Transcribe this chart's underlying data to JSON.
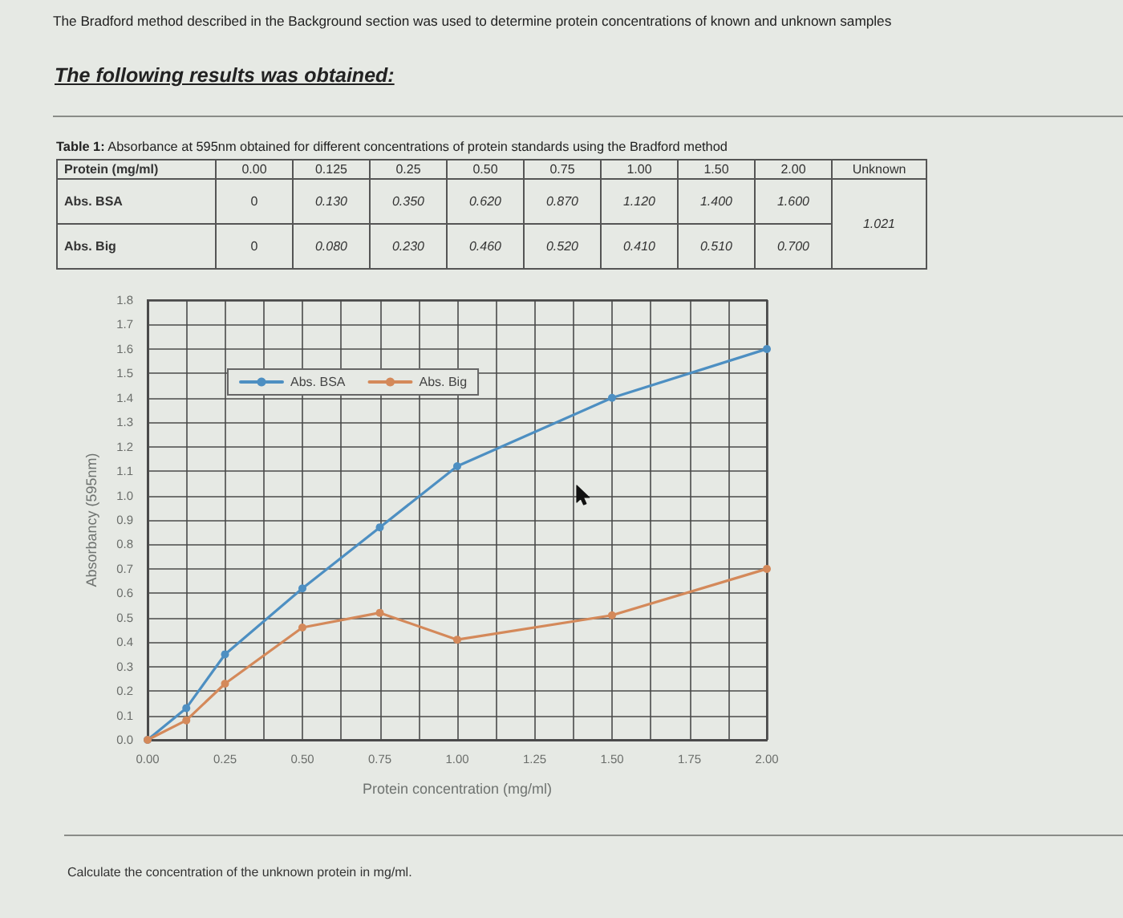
{
  "chart_data": [
    {
      "type": "other",
      "title": "The Bradford method described in the Background section was used to determine protein concentrations of known and unknown samples",
      "subtitle": "The following results was obtained:",
      "annotations": [
        "Table 1: Absorbance at 595nm obtained for different concentrations of protein standards using the Bradford method",
        "Protein (mg/ml)",
        "0.00",
        "0.125",
        "0.25",
        "0.50",
        "0.75",
        "1.00",
        "1.50",
        "2.00",
        "Unknown",
        "Abs. BSA",
        "0",
        "0.130",
        "0.350",
        "0.620",
        "0.870",
        "1.120",
        "1.400",
        "1.600",
        "1.021",
        "Abs. Big",
        "0",
        "0.080",
        "0.230",
        "0.460",
        "0.520",
        "0.410",
        "0.510",
        "0.700"
      ]
    },
    {
      "type": "line",
      "xlabel": "Protein concentration (mg/ml)",
      "ylabel": "Absorbancy (595nm)",
      "x": [
        0,
        0.125,
        0.25,
        0.5,
        0.75,
        1,
        1.5,
        2
      ],
      "series": [
        {
          "name": "Abs. BSA",
          "color": "#4d8fc2",
          "values": [
            0,
            0.13,
            0.35,
            0.62,
            0.87,
            1.12,
            1.4,
            1.6
          ]
        },
        {
          "name": "Abs. Big",
          "color": "#d4895a",
          "values": [
            0,
            0.08,
            0.23,
            0.46,
            0.52,
            0.41,
            0.51,
            0.7
          ]
        }
      ],
      "xlim": [
        0,
        2
      ],
      "xticks": [
        {
          "value": 0,
          "label": "0.00"
        },
        {
          "value": 0.125,
          "label": null
        },
        {
          "value": 0.25,
          "label": "0.25"
        },
        {
          "value": 0.375,
          "label": null
        },
        {
          "value": 0.5,
          "label": "0.50"
        },
        {
          "value": 0.625,
          "label": null
        },
        {
          "value": 0.75,
          "label": "0.75"
        },
        {
          "value": 0.875,
          "label": null
        },
        {
          "value": 1,
          "label": "1.00"
        },
        {
          "value": 1.125,
          "label": null
        },
        {
          "value": 1.25,
          "label": "1.25"
        },
        {
          "value": 1.375,
          "label": null
        },
        {
          "value": 1.5,
          "label": "1.50"
        },
        {
          "value": 1.625,
          "label": null
        },
        {
          "value": 1.75,
          "label": "1.75"
        },
        {
          "value": 1.875,
          "label": null
        },
        {
          "value": 2,
          "label": "2.00"
        }
      ],
      "ylim": [
        0,
        1.8
      ],
      "yticks": [
        {
          "value": 0,
          "label": "0.0"
        },
        0.1,
        0.2,
        0.3,
        0.4,
        0.5,
        0.6,
        0.7,
        0.8,
        0.9,
        {
          "value": 1,
          "label": "1.0"
        },
        1.1,
        1.2,
        1.3,
        1.4,
        1.5,
        1.6,
        1.7,
        1.8
      ],
      "grid": true,
      "legend": "top left",
      "marker": "circle",
      "line_style": "solid",
      "annotations": [
        "Calculate the concentration of the unknown protein in mg/ml."
      ]
    }
  ]
}
